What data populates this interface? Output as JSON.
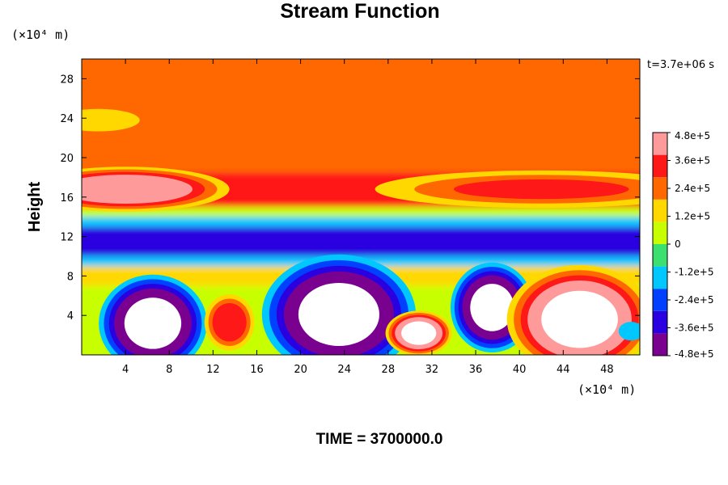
{
  "chart_data": {
    "type": "heatmap",
    "title": "Stream Function",
    "xlabel": "",
    "ylabel": "Height",
    "x_unit_label": "(×10⁴ m)",
    "y_unit_label": "(×10⁴ m)",
    "xlim": [
      0,
      51
    ],
    "ylim": [
      0,
      30
    ],
    "x_ticks": [
      4,
      8,
      12,
      16,
      20,
      24,
      28,
      32,
      36,
      40,
      44,
      48
    ],
    "y_ticks": [
      4,
      8,
      12,
      16,
      20,
      24,
      28
    ],
    "time_annotation": "t=3.7e+06 s",
    "footer_label": "TIME = 3700000.0",
    "colorbar": {
      "min": -480000,
      "max": 480000,
      "tick_values": [
        480000,
        360000,
        240000,
        120000,
        0,
        -120000,
        -240000,
        -360000,
        -480000
      ],
      "tick_labels": [
        "4.8e+5",
        "3.6e+5",
        "2.4e+5",
        "1.2e+5",
        "0",
        "-1.2e+5",
        "-2.4e+5",
        "-3.6e+5",
        "-4.8e+5"
      ],
      "colors": [
        "#7a0090",
        "#2a00e0",
        "#0040ff",
        "#00c8ff",
        "#3ce070",
        "#c8ff00",
        "#ffd800",
        "#ff6800",
        "#ff1818",
        "#ff9a9a"
      ]
    },
    "bands": [
      {
        "y": [
          0,
          7
        ],
        "value": 30000
      },
      {
        "y": [
          7,
          9
        ],
        "value": 120000
      },
      {
        "y": [
          9,
          10
        ],
        "value": -150000
      },
      {
        "y": [
          10,
          13
        ],
        "value": -330000
      },
      {
        "y": [
          13,
          14
        ],
        "value": -150000
      },
      {
        "y": [
          14,
          15
        ],
        "value": 80000
      },
      {
        "y": [
          15,
          18.5
        ],
        "value": 330000
      },
      {
        "y": [
          18.5,
          20
        ],
        "value": 200000
      },
      {
        "y": [
          20,
          30
        ],
        "value": 260000
      }
    ],
    "features": [
      {
        "x": 4,
        "y": 16.8,
        "rx": 5,
        "ry": 1.2,
        "value": 450000
      },
      {
        "x": 42,
        "y": 16.8,
        "rx": 8,
        "ry": 1.0,
        "value": 330000
      },
      {
        "x": 1.5,
        "y": 23.8,
        "rx": 2,
        "ry": 0.6,
        "value": 180000
      },
      {
        "x": 6.5,
        "y": 3.2,
        "rx": 2.6,
        "ry": 2.6,
        "value": -520000
      },
      {
        "x": 13.5,
        "y": 3.3,
        "rx": 1.2,
        "ry": 1.5,
        "value": 370000
      },
      {
        "x": 23.5,
        "y": 4.1,
        "rx": 3.7,
        "ry": 3.2,
        "value": -520000
      },
      {
        "x": 30.8,
        "y": 2.2,
        "rx": 1.6,
        "ry": 1.2,
        "value": 520000
      },
      {
        "x": 37.5,
        "y": 4.8,
        "rx": 2.0,
        "ry": 2.4,
        "value": -520000
      },
      {
        "x": 45.5,
        "y": 3.6,
        "rx": 3.5,
        "ry": 2.9,
        "value": 520000
      },
      {
        "x": 50.2,
        "y": 2.4,
        "rx": 0.6,
        "ry": 0.5,
        "value": -150000
      }
    ]
  }
}
